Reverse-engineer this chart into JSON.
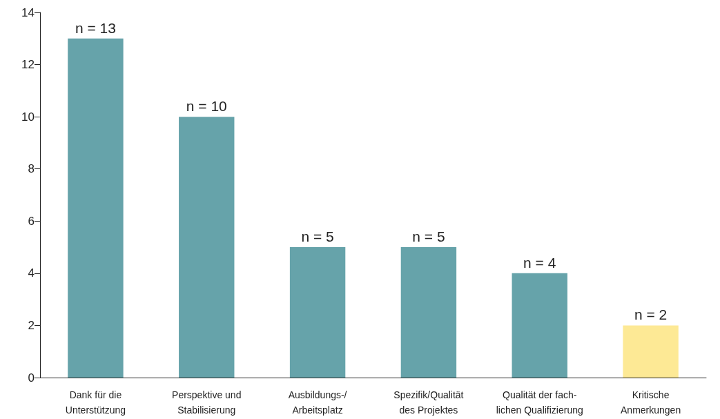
{
  "chart_data": {
    "type": "bar",
    "categories": [
      "Dank für die\nUnterstützung",
      "Perspektive und\nStabilisierung",
      "Ausbildungs-/\nArbeitsplatz",
      "Spezifik/Qualität\ndes Projektes",
      "Qualität der fach-\nlichen Qualifizierung",
      "Kritische\nAnmerkungen"
    ],
    "values": [
      13,
      10,
      5,
      5,
      4,
      2
    ],
    "colors": [
      "#66a3aa",
      "#66a3aa",
      "#66a3aa",
      "#66a3aa",
      "#66a3aa",
      "#fde995"
    ],
    "value_labels": [
      "n = 13",
      "n = 10",
      "n = 5",
      "n = 5",
      "n = 4",
      "n = 2"
    ],
    "ylim": [
      0,
      14
    ],
    "yticks": [
      0,
      2,
      4,
      6,
      8,
      10,
      12,
      14
    ],
    "grid": false
  }
}
